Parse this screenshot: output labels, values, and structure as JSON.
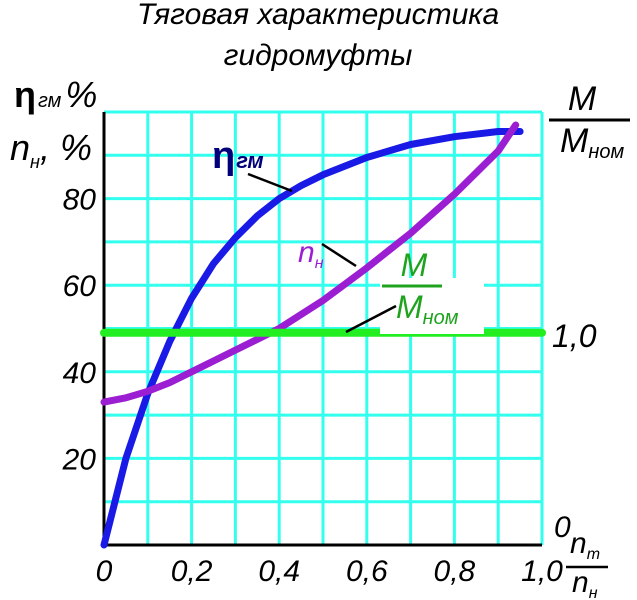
{
  "chart_data": {
    "type": "line",
    "title": [
      "Тяговая характеристика",
      "гидромуфты"
    ],
    "left_axis": {
      "label_top": "η",
      "label_top_sub": "гм",
      "label_top_unit": "%",
      "label_bottom": "n",
      "label_bottom_sub": "н",
      "label_bottom_unit": ", %",
      "ticks": [
        "20",
        "40",
        "60",
        "80"
      ],
      "ylim": [
        0,
        100
      ]
    },
    "right_axis": {
      "label_num": "M",
      "label_den": "M",
      "label_den_sub": "ном",
      "tick_value": "1,0",
      "tick_zero": "0"
    },
    "x_axis": {
      "ticks": [
        "0",
        "0,2",
        "0,4",
        "0,6",
        "0,8",
        "1,0"
      ],
      "label_num": "n",
      "label_num_sub": "т",
      "label_den": "n",
      "label_den_sub": "н",
      "xlim": [
        0,
        1.0
      ]
    },
    "series": [
      {
        "name": "η",
        "name_sub": "гм",
        "color": "#1a1ae6",
        "label_color": "#00007a",
        "points": [
          [
            0,
            0
          ],
          [
            0.05,
            20
          ],
          [
            0.1,
            35
          ],
          [
            0.15,
            47
          ],
          [
            0.2,
            57
          ],
          [
            0.25,
            65
          ],
          [
            0.3,
            71
          ],
          [
            0.35,
            76
          ],
          [
            0.4,
            80
          ],
          [
            0.45,
            83
          ],
          [
            0.5,
            85.5
          ],
          [
            0.6,
            89.5
          ],
          [
            0.7,
            92.5
          ],
          [
            0.8,
            94.3
          ],
          [
            0.9,
            95.5
          ],
          [
            0.95,
            95.5
          ]
        ]
      },
      {
        "name": "n",
        "name_sub": "н",
        "color": "#9b1ed2",
        "label_color": "#9b1ed2",
        "points": [
          [
            0,
            33
          ],
          [
            0.05,
            34
          ],
          [
            0.1,
            35.5
          ],
          [
            0.15,
            37.5
          ],
          [
            0.2,
            40
          ],
          [
            0.25,
            42.5
          ],
          [
            0.3,
            45
          ],
          [
            0.35,
            47.5
          ],
          [
            0.4,
            50
          ],
          [
            0.5,
            56.5
          ],
          [
            0.6,
            64
          ],
          [
            0.7,
            72
          ],
          [
            0.8,
            81
          ],
          [
            0.85,
            86
          ],
          [
            0.9,
            91
          ],
          [
            0.94,
            97
          ]
        ]
      },
      {
        "name": "M",
        "name_den": "M",
        "name_den_sub": "ном",
        "color": "#22ee22",
        "label_color": "#1fa31f",
        "points": [
          [
            0,
            49
          ],
          [
            1.0,
            49
          ]
        ]
      }
    ],
    "grid": true,
    "colors": {
      "grid": "#33ffee",
      "axis": "#000000"
    }
  }
}
